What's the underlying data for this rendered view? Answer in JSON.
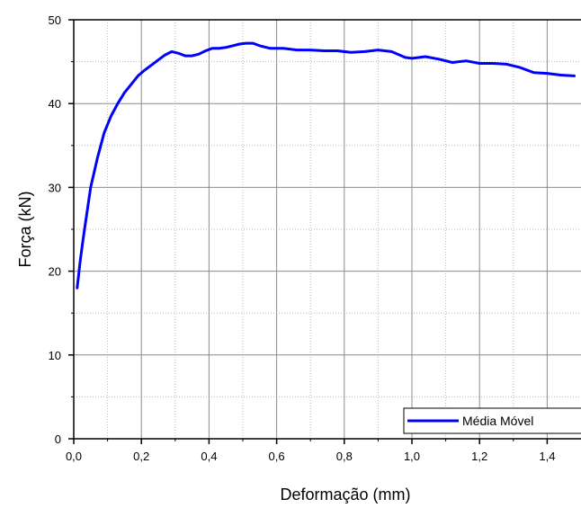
{
  "chart_data": {
    "type": "line",
    "title": "",
    "xlabel": "Deformação (mm)",
    "ylabel": "Força (kN)",
    "xlim": [
      0.0,
      1.5
    ],
    "ylim": [
      0,
      50
    ],
    "x_ticks": [
      0.0,
      0.2,
      0.4,
      0.6,
      0.8,
      1.0,
      1.2,
      1.4
    ],
    "x_tick_labels": [
      "0,0",
      "0,2",
      "0,4",
      "0,6",
      "0,8",
      "1,0",
      "1,2",
      "1,4"
    ],
    "y_ticks": [
      0,
      10,
      20,
      30,
      40,
      50
    ],
    "y_tick_labels": [
      "0",
      "10",
      "20",
      "30",
      "40",
      "50"
    ],
    "grid": true,
    "legend_position": "bottom-right",
    "series": [
      {
        "name": "Média Móvel",
        "color": "#0000ff",
        "x": [
          0.01,
          0.02,
          0.03,
          0.05,
          0.07,
          0.09,
          0.11,
          0.13,
          0.15,
          0.17,
          0.19,
          0.21,
          0.23,
          0.25,
          0.27,
          0.29,
          0.31,
          0.33,
          0.35,
          0.37,
          0.39,
          0.41,
          0.43,
          0.45,
          0.47,
          0.49,
          0.51,
          0.53,
          0.55,
          0.58,
          0.62,
          0.66,
          0.7,
          0.74,
          0.78,
          0.82,
          0.86,
          0.9,
          0.94,
          0.98,
          1.0,
          1.04,
          1.08,
          1.12,
          1.16,
          1.2,
          1.24,
          1.28,
          1.32,
          1.36,
          1.4,
          1.44,
          1.48
        ],
        "values": [
          18.0,
          21.5,
          24.5,
          30.0,
          33.5,
          36.5,
          38.5,
          40.0,
          41.3,
          42.3,
          43.3,
          44.0,
          44.6,
          45.2,
          45.8,
          46.2,
          46.0,
          45.7,
          45.7,
          45.9,
          46.3,
          46.6,
          46.6,
          46.7,
          46.9,
          47.1,
          47.2,
          47.2,
          46.9,
          46.6,
          46.6,
          46.4,
          46.4,
          46.3,
          46.3,
          46.1,
          46.2,
          46.4,
          46.2,
          45.5,
          45.4,
          45.6,
          45.3,
          44.9,
          45.1,
          44.8,
          44.8,
          44.7,
          44.3,
          43.7,
          43.6,
          43.4,
          43.3
        ]
      }
    ]
  }
}
